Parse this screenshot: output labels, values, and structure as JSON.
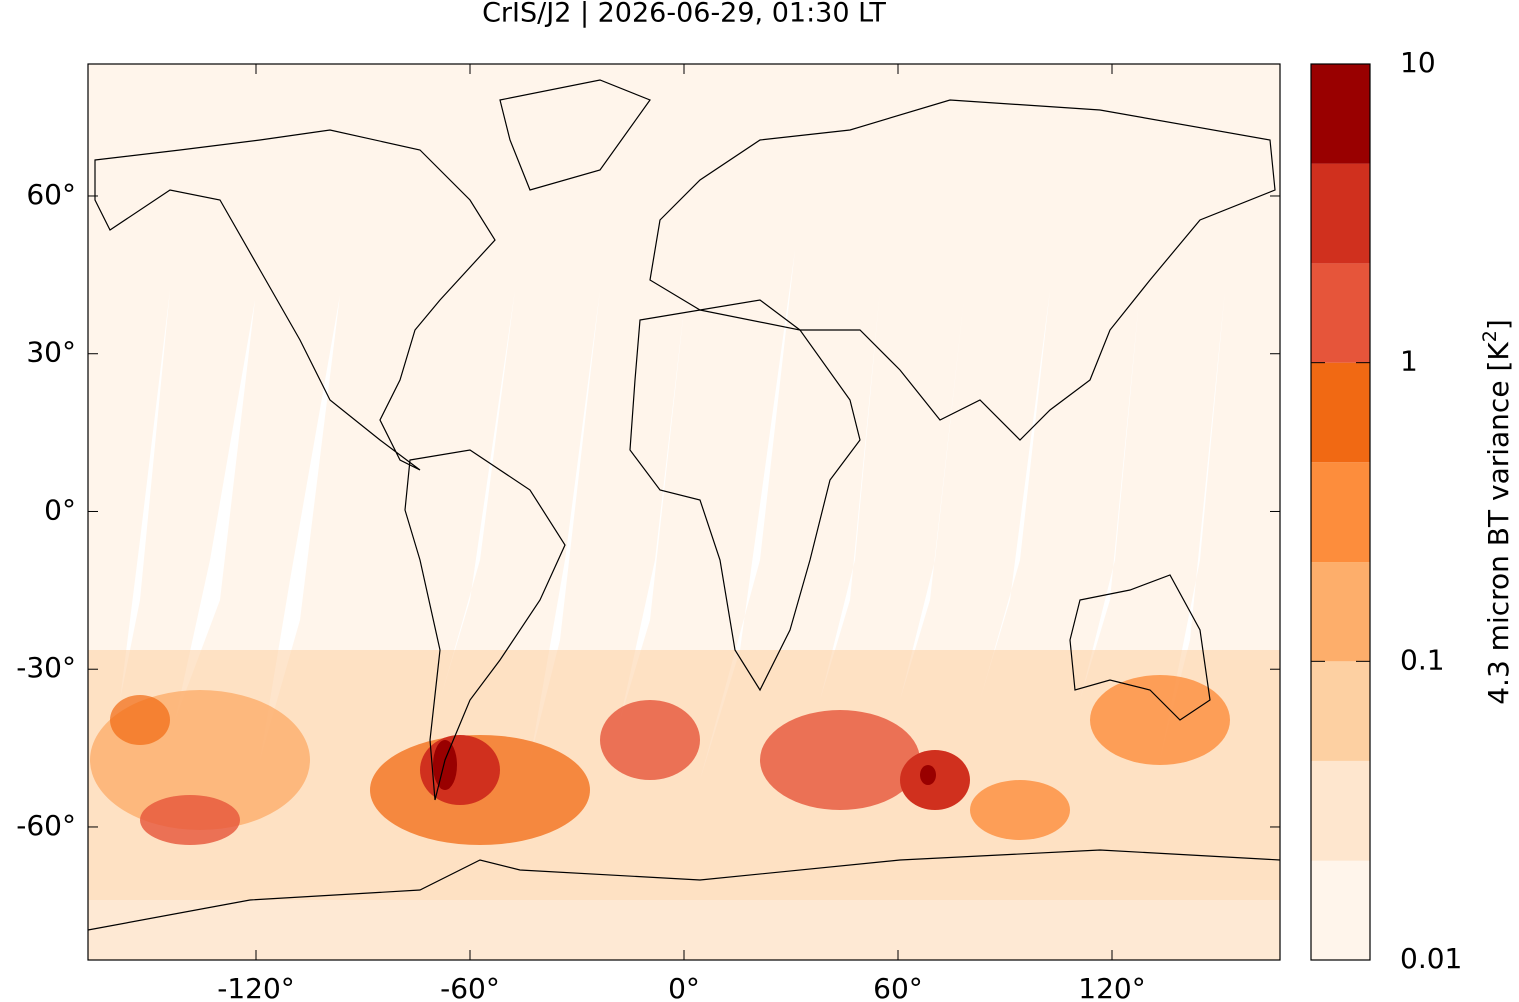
{
  "chart_data": {
    "type": "map",
    "title": "CrIS/J2 | 2026-06-29, 01:30 LT",
    "xlim": [
      -167.1,
      167.1
    ],
    "ylim": [
      -85.3,
      85.1
    ],
    "xticks": [
      {
        "value": -120,
        "label": "-120°"
      },
      {
        "value": -60,
        "label": "-60°"
      },
      {
        "value": 0,
        "label": "0°"
      },
      {
        "value": 60,
        "label": "60°"
      },
      {
        "value": 120,
        "label": "120°"
      }
    ],
    "yticks": [
      {
        "value": 60,
        "label": "60°"
      },
      {
        "value": 30,
        "label": "30°"
      },
      {
        "value": 0,
        "label": "0°"
      },
      {
        "value": -30,
        "label": "-30°"
      },
      {
        "value": -60,
        "label": "-60°"
      }
    ],
    "colorbar": {
      "label": "4.3 micron BT variance [K",
      "label_superscript": "2",
      "label_suffix": "]",
      "log_scale": true,
      "lim": [
        0.01,
        10
      ],
      "ticks": [
        0.01,
        0.1,
        1,
        10
      ],
      "levels": [
        0.01,
        0.0215,
        0.0464,
        0.1,
        0.215,
        0.464,
        1,
        2.15,
        4.64,
        10
      ],
      "colors": [
        "#fff5eb",
        "#fee6ce",
        "#fdd0a2",
        "#fdae6b",
        "#fd8d3c",
        "#f16913",
        "#e6553a",
        "#d0301e",
        "#990000"
      ]
    }
  }
}
